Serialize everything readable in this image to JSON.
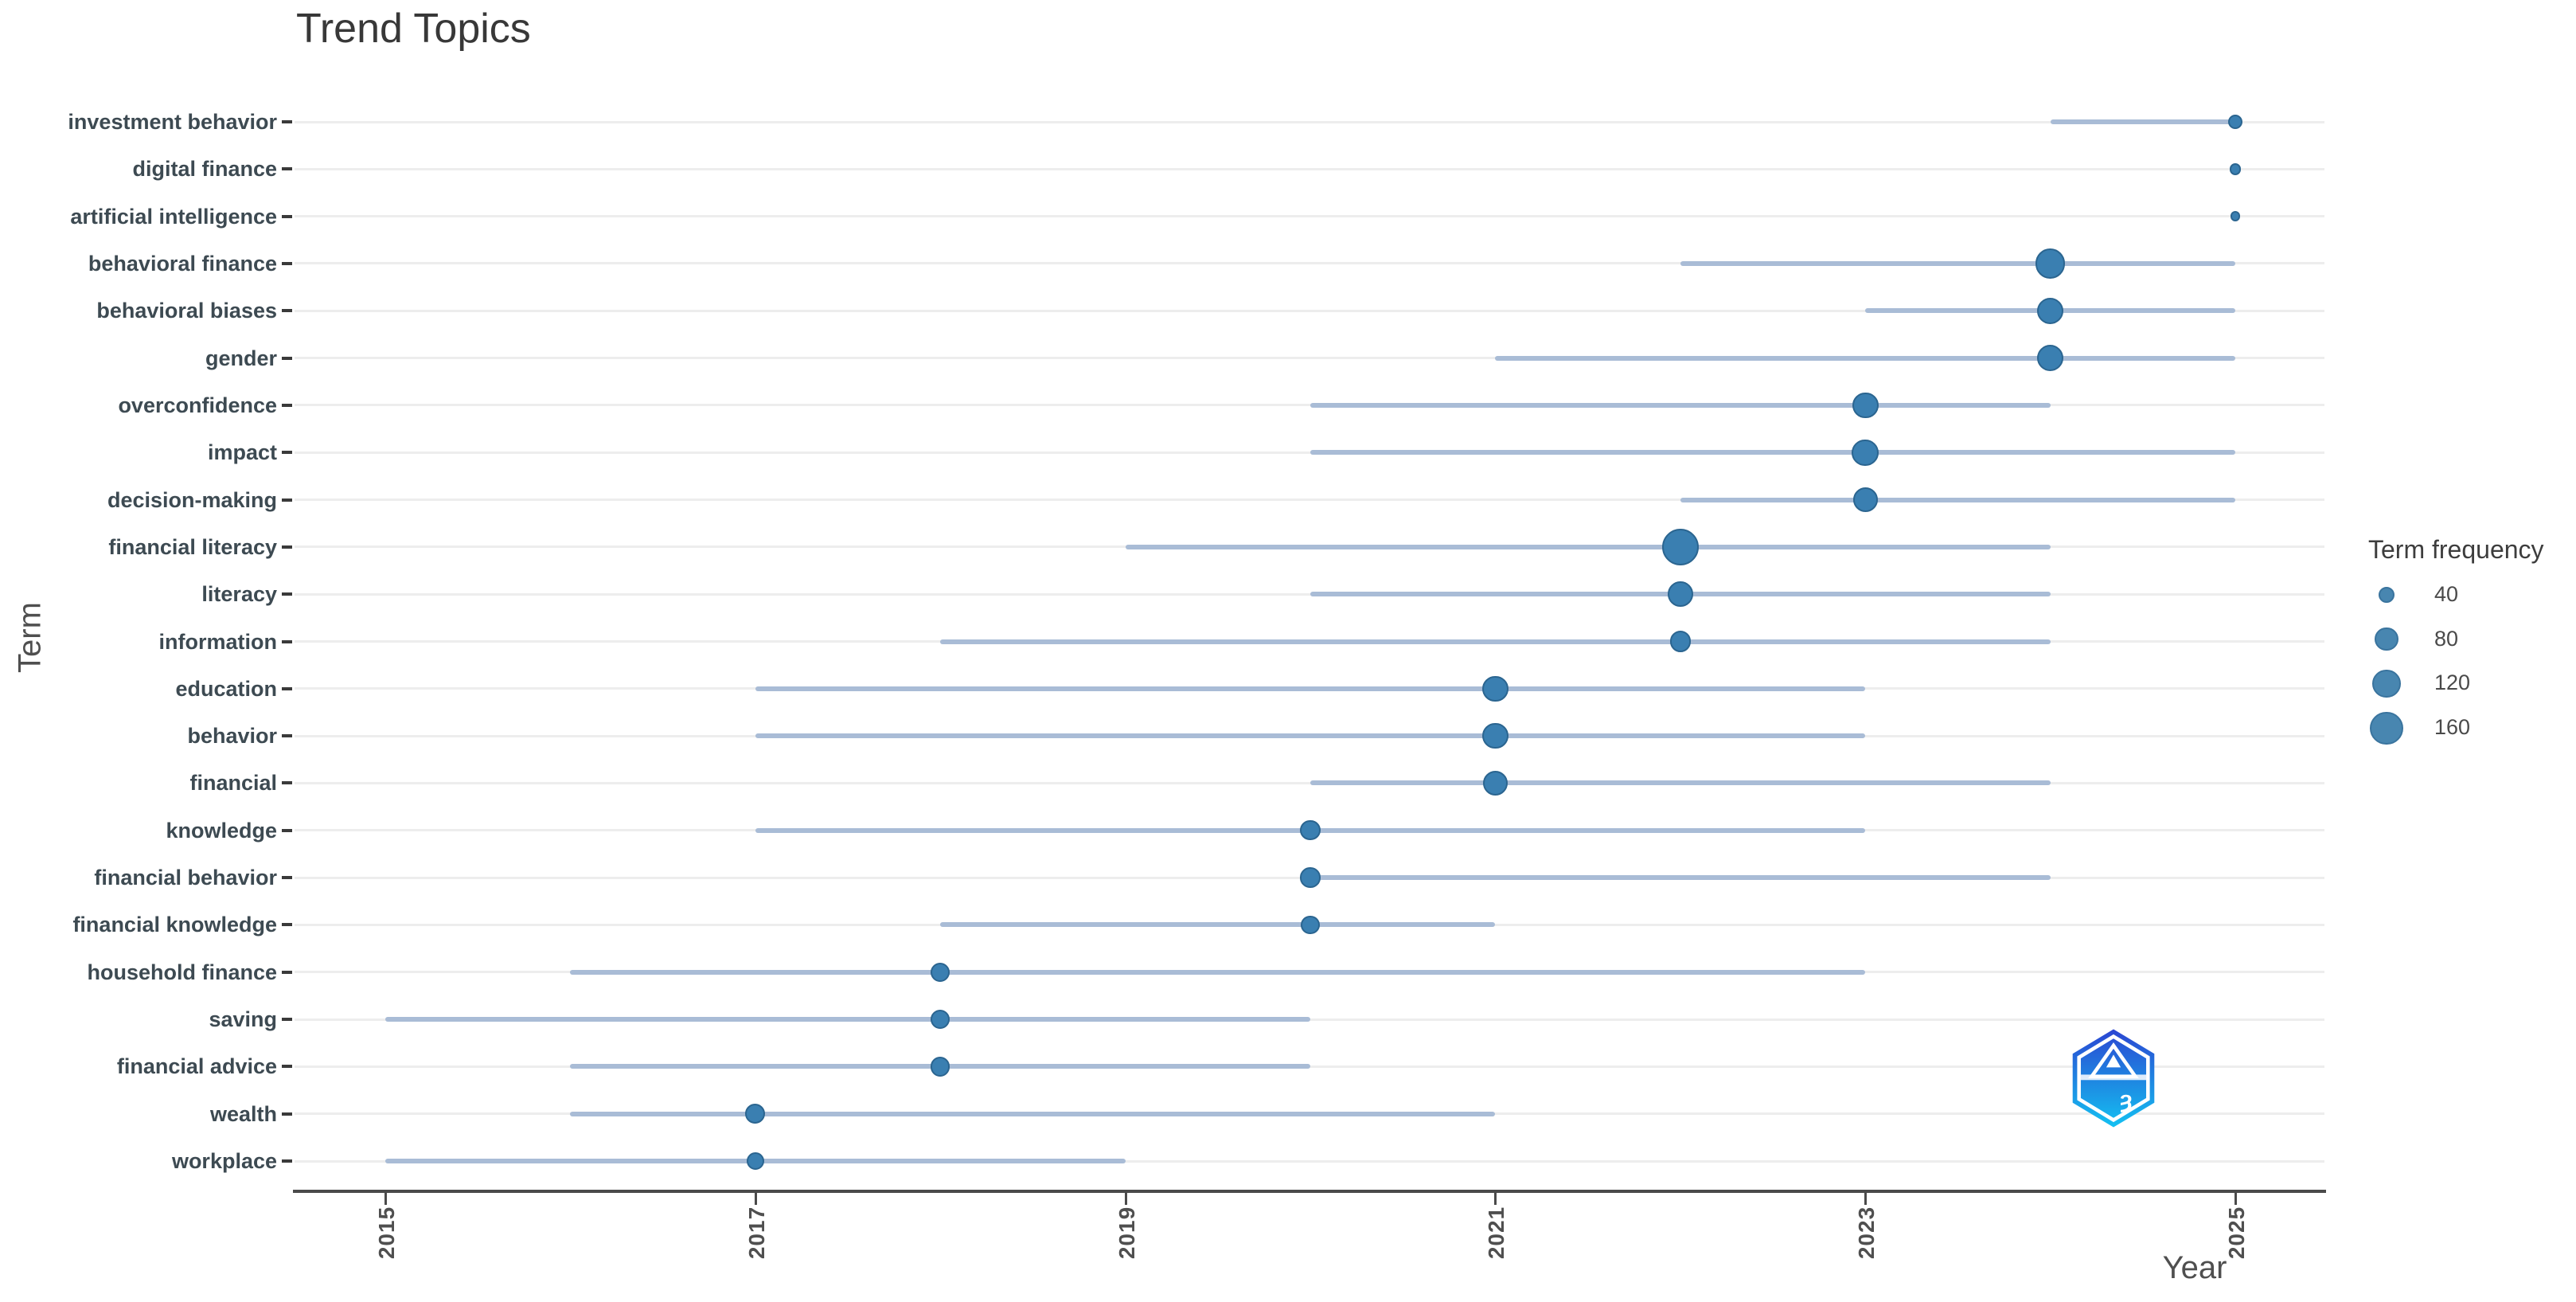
{
  "title": "Trend Topics",
  "x_axis": {
    "label": "Year",
    "tick_labels": [
      "2015",
      "2017",
      "2019",
      "2021",
      "2023",
      "2025"
    ]
  },
  "y_axis": {
    "label": "Term"
  },
  "legend": {
    "title": "Term frequency",
    "sizes": [
      40,
      80,
      120,
      160
    ]
  },
  "logo": {
    "name": "hexagon-badge-logo"
  },
  "colors": {
    "dot_fill": "#3a7fb1",
    "dot_stroke": "#2b6590",
    "range_line": "#a9bcd6",
    "gridline": "#ededed",
    "axis": "#4a4a4a",
    "title_text": "#383838",
    "label_text": "#3d4a52",
    "logo_top": "#2b45d2",
    "logo_bottom": "#14c1f2"
  },
  "chart_data": {
    "type": "scatter",
    "title": "Trend Topics",
    "xlabel": "Year",
    "ylabel": "Term",
    "x_range": [
      2014.5,
      2025.5
    ],
    "x_ticks": [
      2015,
      2017,
      2019,
      2021,
      2023,
      2025
    ],
    "grid": "horizontal light gridlines per term row",
    "legend_position": "right",
    "size_legend": {
      "title": "Term frequency",
      "values": [
        40,
        80,
        120,
        160
      ]
    },
    "encoding": "dot x = median year of term usage; horizontal line = Q1 to Q3 year range; dot size = term frequency (frequencies estimated from bubble areas)",
    "series": [
      {
        "term": "investment behavior",
        "year_q1": 2024,
        "year_median": 2025,
        "year_q3": 2025,
        "frequency": 30
      },
      {
        "term": "digital finance",
        "year_q1": 2025,
        "year_median": 2025,
        "year_q3": 2025,
        "frequency": 20
      },
      {
        "term": "artificial intelligence",
        "year_q1": 2025,
        "year_median": 2025,
        "year_q3": 2025,
        "frequency": 15
      },
      {
        "term": "behavioral finance",
        "year_q1": 2022,
        "year_median": 2024,
        "year_q3": 2025,
        "frequency": 130
      },
      {
        "term": "behavioral biases",
        "year_q1": 2023,
        "year_median": 2024,
        "year_q3": 2025,
        "frequency": 105
      },
      {
        "term": "gender",
        "year_q1": 2021,
        "year_median": 2024,
        "year_q3": 2025,
        "frequency": 105
      },
      {
        "term": "overconfidence",
        "year_q1": 2020,
        "year_median": 2023,
        "year_q3": 2024,
        "frequency": 100
      },
      {
        "term": "impact",
        "year_q1": 2020,
        "year_median": 2023,
        "year_q3": 2025,
        "frequency": 105
      },
      {
        "term": "decision-making",
        "year_q1": 2022,
        "year_median": 2023,
        "year_q3": 2025,
        "frequency": 90
      },
      {
        "term": "financial literacy",
        "year_q1": 2019,
        "year_median": 2022,
        "year_q3": 2024,
        "frequency": 200
      },
      {
        "term": "literacy",
        "year_q1": 2020,
        "year_median": 2022,
        "year_q3": 2024,
        "frequency": 95
      },
      {
        "term": "information",
        "year_q1": 2018,
        "year_median": 2022,
        "year_q3": 2024,
        "frequency": 65
      },
      {
        "term": "education",
        "year_q1": 2017,
        "year_median": 2021,
        "year_q3": 2023,
        "frequency": 100
      },
      {
        "term": "behavior",
        "year_q1": 2017,
        "year_median": 2021,
        "year_q3": 2023,
        "frequency": 100
      },
      {
        "term": "financial",
        "year_q1": 2020,
        "year_median": 2021,
        "year_q3": 2024,
        "frequency": 90
      },
      {
        "term": "knowledge",
        "year_q1": 2017,
        "year_median": 2020,
        "year_q3": 2023,
        "frequency": 60
      },
      {
        "term": "financial behavior",
        "year_q1": 2020,
        "year_median": 2020,
        "year_q3": 2024,
        "frequency": 60
      },
      {
        "term": "financial knowledge",
        "year_q1": 2018,
        "year_median": 2020,
        "year_q3": 2021,
        "frequency": 50
      },
      {
        "term": "household finance",
        "year_q1": 2016,
        "year_median": 2018,
        "year_q3": 2023,
        "frequency": 55
      },
      {
        "term": "saving",
        "year_q1": 2015,
        "year_median": 2018,
        "year_q3": 2020,
        "frequency": 55
      },
      {
        "term": "financial advice",
        "year_q1": 2016,
        "year_median": 2018,
        "year_q3": 2020,
        "frequency": 55
      },
      {
        "term": "wealth",
        "year_q1": 2016,
        "year_median": 2017,
        "year_q3": 2021,
        "frequency": 60
      },
      {
        "term": "workplace",
        "year_q1": 2015,
        "year_median": 2017,
        "year_q3": 2019,
        "frequency": 45
      }
    ]
  }
}
